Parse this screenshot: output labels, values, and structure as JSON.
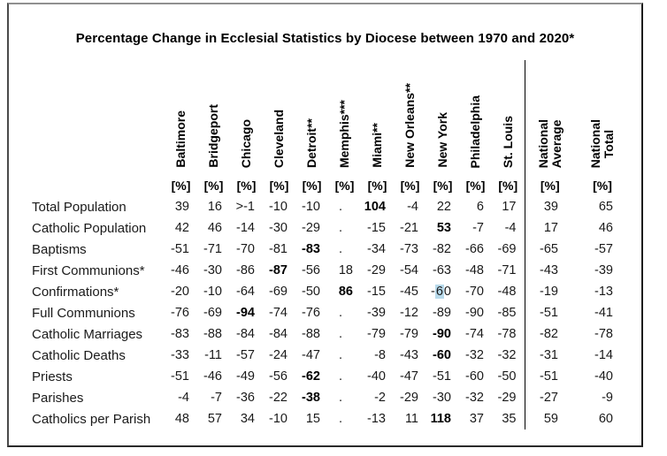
{
  "title": "Percentage Change in Ecclesial Statistics by Diocese between 1970 and 2020*",
  "unit": "[%]",
  "columns": [
    {
      "label": "Baltimore"
    },
    {
      "label": "Bridgeport"
    },
    {
      "label": "Chicago"
    },
    {
      "label": "Cleveland"
    },
    {
      "label": "Detroit**"
    },
    {
      "label": "Memphis***"
    },
    {
      "label": "Miami**"
    },
    {
      "label": "New Orleans**"
    },
    {
      "label": "New York"
    },
    {
      "label": "Philadelphia"
    },
    {
      "label": "St. Louis"
    },
    {
      "label": "National Average",
      "lines": [
        "National",
        "Average"
      ],
      "group": "national"
    },
    {
      "label": "National Total",
      "lines": [
        "National",
        "Total"
      ],
      "group": "national"
    }
  ],
  "rows": [
    {
      "label": "Total Population",
      "values": [
        "39",
        "16",
        ">-1",
        "-10",
        "-10",
        ".",
        "104",
        "-4",
        "22",
        "6",
        "17",
        "39",
        "65"
      ]
    },
    {
      "label": "Catholic Population",
      "values": [
        "42",
        "46",
        "-14",
        "-30",
        "-29",
        ".",
        "-15",
        "-21",
        "53",
        "-7",
        "-4",
        "17",
        "46"
      ]
    },
    {
      "label": "Baptisms",
      "values": [
        "-51",
        "-71",
        "-70",
        "-81",
        "-83",
        ".",
        "-34",
        "-73",
        "-82",
        "-66",
        "-69",
        "-65",
        "-57"
      ]
    },
    {
      "label": "First Communions*",
      "values": [
        "-46",
        "-30",
        "-86",
        "-87",
        "-56",
        "18",
        "-29",
        "-54",
        "-63",
        "-48",
        "-71",
        "-43",
        "-39"
      ]
    },
    {
      "label": "Confirmations*",
      "values": [
        "-20",
        "-10",
        "-64",
        "-69",
        "-50",
        "86",
        "-15",
        "-45",
        "-60",
        "-70",
        "-48",
        "-19",
        "-13"
      ]
    },
    {
      "label": "Full Communions",
      "values": [
        "-76",
        "-69",
        "-94",
        "-74",
        "-76",
        ".",
        "-39",
        "-12",
        "-89",
        "-90",
        "-85",
        "-51",
        "-41"
      ]
    },
    {
      "label": "Catholic Marriages",
      "values": [
        "-83",
        "-88",
        "-84",
        "-84",
        "-88",
        ".",
        "-79",
        "-79",
        "-90",
        "-74",
        "-78",
        "-82",
        "-78"
      ]
    },
    {
      "label": "Catholic Deaths",
      "values": [
        "-33",
        "-11",
        "-57",
        "-24",
        "-47",
        ".",
        "-8",
        "-43",
        "-60",
        "-32",
        "-32",
        "-31",
        "-14"
      ]
    },
    {
      "label": "Priests",
      "values": [
        "-51",
        "-46",
        "-49",
        "-56",
        "-62",
        ".",
        "-40",
        "-47",
        "-51",
        "-60",
        "-50",
        "-51",
        "-40"
      ]
    },
    {
      "label": "Parishes",
      "values": [
        "-4",
        "-7",
        "-36",
        "-22",
        "-38",
        ".",
        "-2",
        "-29",
        "-30",
        "-32",
        "-29",
        "-27",
        "-9"
      ]
    },
    {
      "label": "Catholics per Parish",
      "values": [
        "48",
        "57",
        "34",
        "-10",
        "15",
        ".",
        "-13",
        "11",
        "118",
        "37",
        "35",
        "59",
        "60"
      ]
    }
  ],
  "bold_cells": [
    [
      0,
      6
    ],
    [
      1,
      8
    ],
    [
      2,
      4
    ],
    [
      3,
      3
    ],
    [
      4,
      5
    ],
    [
      5,
      2
    ],
    [
      6,
      8
    ],
    [
      7,
      8
    ],
    [
      8,
      4
    ],
    [
      9,
      4
    ],
    [
      10,
      8
    ]
  ],
  "selection": {
    "row": 4,
    "col": 8,
    "before": "-",
    "selected": "6",
    "after": "0",
    "color": "#b7d9ea"
  }
}
